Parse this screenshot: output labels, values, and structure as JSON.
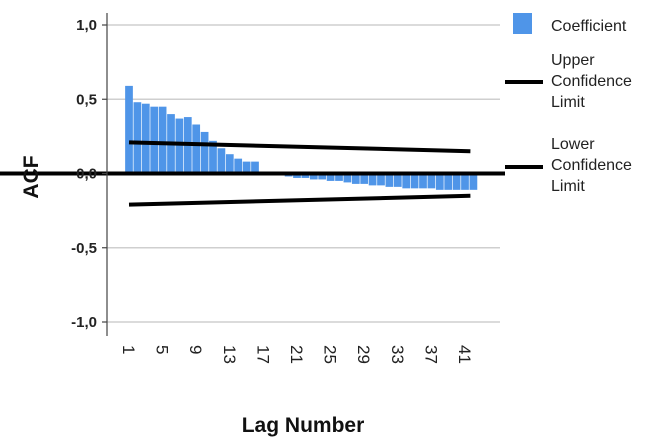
{
  "chart_data": {
    "type": "bar",
    "xlabel": "Lag Number",
    "ylabel": "ACF",
    "ylim": [
      -1.0,
      1.0
    ],
    "yticks": [
      "1,0",
      "0,5",
      "0,0",
      "-0,5",
      "-1,0"
    ],
    "ytick_values": [
      1.0,
      0.5,
      0.0,
      -0.5,
      -1.0
    ],
    "xticks": [
      "1",
      "5",
      "9",
      "13",
      "17",
      "21",
      "25",
      "29",
      "33",
      "37",
      "41"
    ],
    "grid": true,
    "legend_position": "right",
    "series": [
      {
        "name": "Coefficient",
        "color": "#4f95e8",
        "x": [
          1,
          2,
          3,
          4,
          5,
          6,
          7,
          8,
          9,
          10,
          11,
          12,
          13,
          14,
          15,
          16,
          17,
          18,
          19,
          20,
          21,
          22,
          23,
          24,
          25,
          26,
          27,
          28,
          29,
          30,
          31,
          32,
          33,
          34,
          35,
          36,
          37,
          38,
          39,
          40,
          41,
          42
        ],
        "values": [
          0.59,
          0.48,
          0.47,
          0.45,
          0.45,
          0.4,
          0.37,
          0.38,
          0.33,
          0.28,
          0.22,
          0.17,
          0.13,
          0.1,
          0.08,
          0.08,
          0.0,
          0.0,
          0.0,
          -0.02,
          -0.03,
          -0.03,
          -0.04,
          -0.04,
          -0.05,
          -0.05,
          -0.06,
          -0.07,
          -0.07,
          -0.08,
          -0.08,
          -0.09,
          -0.09,
          -0.1,
          -0.1,
          -0.1,
          -0.1,
          -0.11,
          -0.11,
          -0.11,
          -0.11,
          -0.11
        ]
      },
      {
        "name": "Upper Confidence Limit",
        "color": "#000000",
        "x": [
          1,
          42
        ],
        "values": [
          0.21,
          0.15
        ]
      },
      {
        "name": "Lower Confidence Limit",
        "color": "#000000",
        "x": [
          1,
          42
        ],
        "values": [
          -0.21,
          -0.15
        ]
      }
    ]
  },
  "legend": {
    "coefficient": "Coefficient",
    "upper": [
      "Upper",
      "Confidence",
      "Limit"
    ],
    "lower": [
      "Lower",
      "Confidence",
      "Limit"
    ]
  }
}
